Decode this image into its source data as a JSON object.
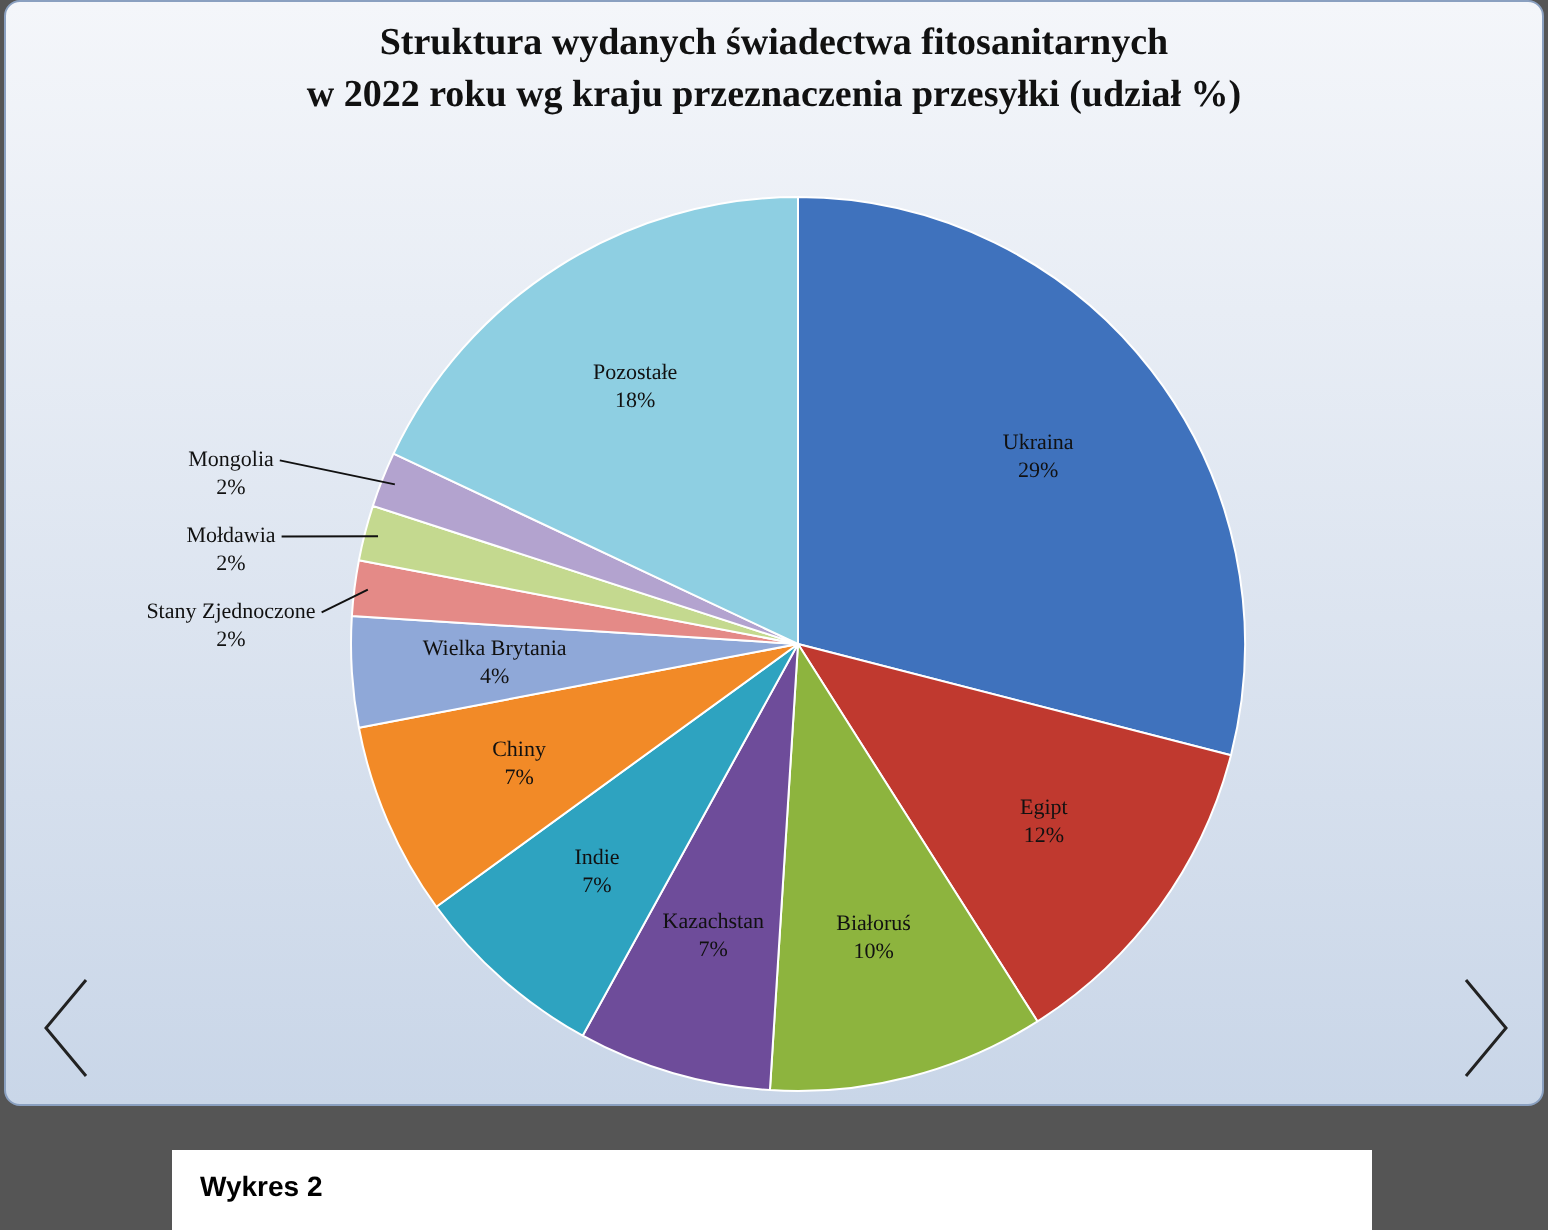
{
  "chart_data": {
    "type": "pie",
    "title": "Struktura wydanych świadectwa fitosanitarnych\nw 2022  roku wg kraju przeznaczenia przesyłki (udział %)",
    "categories": [
      "Ukraina",
      "Egipt",
      "Białoruś",
      "Kazachstan",
      "Indie",
      "Chiny",
      "Wielka Brytania",
      "Stany Zjednoczone",
      "Mołdawia",
      "Mongolia",
      "Pozostałe"
    ],
    "values": [
      29,
      12,
      10,
      7,
      7,
      7,
      4,
      2,
      2,
      2,
      18
    ],
    "value_labels": [
      "29%",
      "12%",
      "10%",
      "7%",
      "7%",
      "7%",
      "4%",
      "2%",
      "2%",
      "2%",
      "18%"
    ],
    "colors": [
      "#3f72bd",
      "#c0392f",
      "#8db43e",
      "#6e4c9a",
      "#2ea3c0",
      "#f28a27",
      "#8fa8d8",
      "#e48a87",
      "#c4d98f",
      "#b3a3cf",
      "#8ecfe2"
    ],
    "legend": false,
    "annotations": [
      "Wykres 2"
    ]
  }
}
